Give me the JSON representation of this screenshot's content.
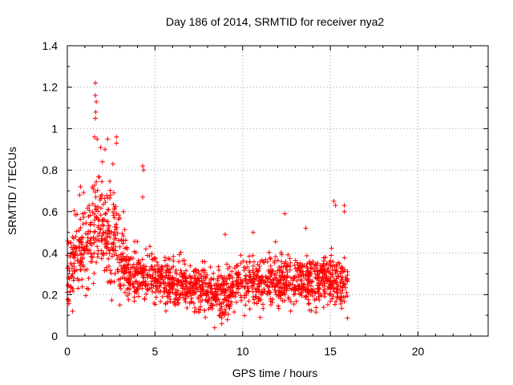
{
  "chart_data": {
    "type": "scatter",
    "title": "Day 186 of 2014, SRMTID for receiver nya2",
    "xlabel": "GPS time / hours",
    "ylabel": "SRMTID / TECUs",
    "xlim": [
      0,
      24
    ],
    "ylim": [
      0,
      1.4
    ],
    "xticks": [
      0,
      5,
      10,
      15,
      20
    ],
    "yticks": [
      0,
      0.2,
      0.4,
      0.6,
      0.8,
      1.0,
      1.2,
      1.4
    ],
    "xtick_labels": [
      "0",
      "5",
      "10",
      "15",
      "20"
    ],
    "ytick_labels": [
      "0",
      "0.2",
      "0.4",
      "0.6",
      "0.8",
      "1",
      "1.2",
      "1.4"
    ],
    "grid": true,
    "marker": "+",
    "marker_color": "#ff0000",
    "series": [
      {
        "name": "SRMTID",
        "description": "dense scatter of roughly 1800 samples; values approximated by envelope",
        "envelope": [
          {
            "t": 0.0,
            "mean": 0.3,
            "spread": 0.16
          },
          {
            "t": 0.5,
            "mean": 0.4,
            "spread": 0.17
          },
          {
            "t": 1.0,
            "mean": 0.42,
            "spread": 0.17
          },
          {
            "t": 1.5,
            "mean": 0.55,
            "spread": 0.22
          },
          {
            "t": 2.0,
            "mean": 0.52,
            "spread": 0.22
          },
          {
            "t": 2.5,
            "mean": 0.48,
            "spread": 0.2
          },
          {
            "t": 3.0,
            "mean": 0.4,
            "spread": 0.17
          },
          {
            "t": 3.5,
            "mean": 0.3,
            "spread": 0.12
          },
          {
            "t": 4.5,
            "mean": 0.3,
            "spread": 0.11
          },
          {
            "t": 6.0,
            "mean": 0.25,
            "spread": 0.1
          },
          {
            "t": 7.5,
            "mean": 0.24,
            "spread": 0.1
          },
          {
            "t": 8.5,
            "mean": 0.2,
            "spread": 0.11
          },
          {
            "t": 10.0,
            "mean": 0.26,
            "spread": 0.11
          },
          {
            "t": 12.0,
            "mean": 0.27,
            "spread": 0.11
          },
          {
            "t": 14.0,
            "mean": 0.26,
            "spread": 0.11
          },
          {
            "t": 15.0,
            "mean": 0.28,
            "spread": 0.12
          },
          {
            "t": 16.0,
            "mean": 0.24,
            "spread": 0.1
          }
        ],
        "notable_points": [
          {
            "x": 1.6,
            "y": 1.22
          },
          {
            "x": 1.6,
            "y": 1.16
          },
          {
            "x": 1.65,
            "y": 1.13
          },
          {
            "x": 1.62,
            "y": 1.08
          },
          {
            "x": 1.6,
            "y": 1.05
          },
          {
            "x": 1.55,
            "y": 0.96
          },
          {
            "x": 1.7,
            "y": 0.95
          },
          {
            "x": 2.3,
            "y": 0.95
          },
          {
            "x": 2.8,
            "y": 0.96
          },
          {
            "x": 2.8,
            "y": 0.93
          },
          {
            "x": 2.15,
            "y": 0.9
          },
          {
            "x": 1.9,
            "y": 0.91
          },
          {
            "x": 4.3,
            "y": 0.82
          },
          {
            "x": 4.35,
            "y": 0.8
          },
          {
            "x": 4.3,
            "y": 0.67
          },
          {
            "x": 15.2,
            "y": 0.65
          },
          {
            "x": 15.3,
            "y": 0.63
          },
          {
            "x": 15.8,
            "y": 0.63
          },
          {
            "x": 15.8,
            "y": 0.6
          },
          {
            "x": 12.4,
            "y": 0.59
          },
          {
            "x": 8.4,
            "y": 0.04
          },
          {
            "x": 0.3,
            "y": 0.12
          },
          {
            "x": 3.0,
            "y": 0.15
          },
          {
            "x": 11.0,
            "y": 0.09
          },
          {
            "x": 0.75,
            "y": 0.72
          },
          {
            "x": 0.7,
            "y": 0.68
          },
          {
            "x": 2.0,
            "y": 0.84
          },
          {
            "x": 2.6,
            "y": 0.83
          },
          {
            "x": 3.2,
            "y": 0.6
          },
          {
            "x": 10.6,
            "y": 0.5
          },
          {
            "x": 13.6,
            "y": 0.52
          },
          {
            "x": 9.0,
            "y": 0.49
          }
        ]
      }
    ]
  }
}
